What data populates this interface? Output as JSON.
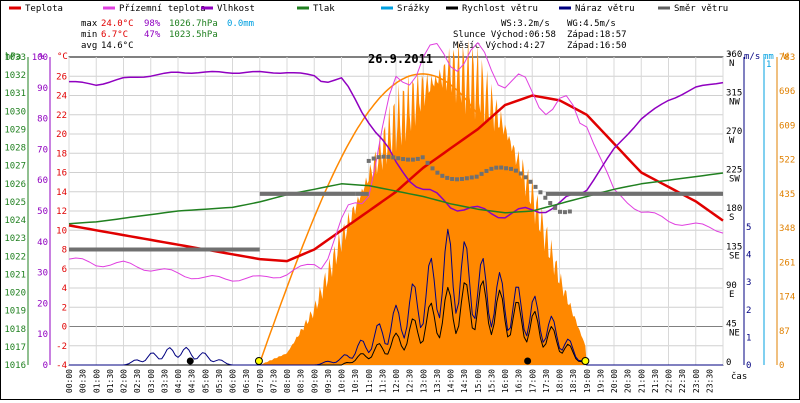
{
  "legend": [
    {
      "label": "Teplota",
      "color": "#e00000"
    },
    {
      "label": "Přízemní teplota",
      "color": "#e040e0"
    },
    {
      "label": "Vlhkost",
      "color": "#9000c0"
    },
    {
      "label": "Tlak",
      "color": "#208020"
    },
    {
      "label": "Srážky",
      "color": "#00a0e0"
    },
    {
      "label": "Rychlost větru",
      "color": "#000000"
    },
    {
      "label": "Náraz větru",
      "color": "#000080"
    },
    {
      "label": "Směr větru",
      "color": "#606060"
    }
  ],
  "stats": {
    "max_label": "max",
    "max_t": "24.0°C",
    "max_h": "98%",
    "max_p": "1026.7hPa",
    "max_r": "0.0mm",
    "min_label": "min",
    "min_t": "6.7°C",
    "min_h": "47%",
    "min_p": "1023.5hPa",
    "avg_label": "avg",
    "avg_t": "14.6°C",
    "ws": "WS:3.2m/s",
    "wg": "WG:4.5m/s",
    "sun_rise": "Slunce Východ:06:58",
    "sun_set": "Západ:18:57",
    "moon_rise": "Měsíc  Východ:4:27",
    "moon_set": "Západ:16:50"
  },
  "date": "26.9.2011",
  "axes": {
    "hpa_title": "hPa",
    "pct_title": "%",
    "c_title": "°C",
    "deg_title": "°",
    "ms_title": "m/s",
    "mm_title": "mm",
    "w_title": "W",
    "hpa_ticks": [
      "1033",
      "1032",
      "1031",
      "1030",
      "1029",
      "1028",
      "1027",
      "1026",
      "1025",
      "1024",
      "1023",
      "1022",
      "1021",
      "1020",
      "1019",
      "1018",
      "1017",
      "1016"
    ],
    "pct_ticks": [
      "100",
      "90",
      "80",
      "70",
      "60",
      "50",
      "40",
      "30",
      "20",
      "10",
      "0"
    ],
    "c_ticks": [
      "26",
      "24",
      "22",
      "20",
      "18",
      "16",
      "14",
      "12",
      "10",
      "8",
      "6",
      "4",
      "2",
      "0",
      "-2",
      "-4"
    ],
    "deg_ticks": [
      "360",
      "315",
      "270",
      "225",
      "180",
      "135",
      "90",
      "45",
      "0"
    ],
    "dir_ticks": [
      "N",
      "NW",
      "W",
      "SW",
      "S",
      "SE",
      "E",
      "NE",
      ""
    ],
    "ms_ticks": [
      "5",
      "4",
      "3",
      "2",
      "1",
      "0"
    ],
    "mm_ticks": [
      "1"
    ],
    "w_ticks": [
      "783",
      "696",
      "609",
      "522",
      "435",
      "348",
      "261",
      "174",
      "87",
      "0"
    ],
    "x_ticks": [
      "00:00",
      "00:30",
      "01:00",
      "01:30",
      "02:00",
      "02:30",
      "03:00",
      "03:30",
      "04:00",
      "04:30",
      "05:00",
      "05:30",
      "06:00",
      "06:30",
      "07:00",
      "07:30",
      "08:00",
      "08:30",
      "09:00",
      "09:30",
      "10:00",
      "10:30",
      "11:00",
      "11:30",
      "12:00",
      "12:30",
      "13:00",
      "13:30",
      "14:00",
      "14:30",
      "15:00",
      "15:30",
      "16:00",
      "16:30",
      "17:00",
      "17:30",
      "18:00",
      "18:30",
      "19:00",
      "19:30",
      "20:00",
      "20:30",
      "21:00",
      "21:30",
      "22:00",
      "22:30",
      "23:00",
      "23:30"
    ],
    "x_title": "čas"
  },
  "chart_data": {
    "type": "line",
    "title": "26.9.2011",
    "xlabel": "čas",
    "x": [
      0,
      1,
      2,
      3,
      4,
      5,
      6,
      7,
      8,
      9,
      10,
      11,
      12,
      13,
      14,
      15,
      16,
      17,
      18,
      19,
      20,
      21,
      22,
      23,
      24
    ],
    "series": [
      {
        "name": "Teplota",
        "unit": "°C",
        "values": [
          10.5,
          10,
          9.5,
          9,
          8.5,
          8,
          7.5,
          7,
          6.8,
          8,
          10,
          12,
          14,
          16.5,
          18.5,
          20.5,
          23,
          24,
          23.5,
          22,
          19,
          16,
          14.5,
          13,
          11
        ]
      },
      {
        "name": "Přízemní teplota",
        "unit": "°C",
        "values": [
          7,
          6.5,
          6.5,
          6,
          5.5,
          5,
          5,
          5,
          5.5,
          6.5,
          10,
          15,
          25,
          28,
          28,
          28,
          26,
          24,
          23,
          21,
          14,
          12,
          11,
          10.5,
          10
        ]
      },
      {
        "name": "Vlhkost",
        "unit": "%",
        "values": [
          92,
          91,
          93,
          94,
          95,
          95,
          95,
          95,
          95,
          94,
          92,
          80,
          65,
          57,
          52,
          50,
          49,
          50,
          52,
          57,
          70,
          80,
          86,
          90,
          92
        ]
      },
      {
        "name": "Tlak",
        "unit": "hPa",
        "values": [
          1023.8,
          1023.9,
          1024.1,
          1024.3,
          1024.5,
          1024.6,
          1024.7,
          1025.0,
          1025.4,
          1025.7,
          1026.0,
          1025.9,
          1025.6,
          1025.3,
          1024.9,
          1024.6,
          1024.4,
          1024.5,
          1024.9,
          1025.3,
          1025.7,
          1026.0,
          1026.2,
          1026.4,
          1026.6
        ]
      },
      {
        "name": "Rychlost větru",
        "unit": "m/s",
        "values": [
          0,
          0,
          0,
          0,
          0,
          0,
          0,
          0,
          0,
          0,
          0,
          0.4,
          0.8,
          1.4,
          2.0,
          2.2,
          1.8,
          1.4,
          0.8,
          0,
          0,
          0,
          0,
          0,
          0
        ]
      },
      {
        "name": "Náraz větru",
        "unit": "m/s",
        "values": [
          0,
          0,
          0,
          0.3,
          0.5,
          0.3,
          0,
          0,
          0,
          0,
          0.2,
          0.8,
          1.5,
          2.4,
          3.5,
          2.8,
          2.2,
          1.8,
          1.0,
          0,
          0,
          0,
          0,
          0,
          0
        ]
      },
      {
        "name": "Směr větru",
        "unit": "°",
        "values": [
          135,
          135,
          135,
          135,
          135,
          135,
          135,
          200,
          200,
          200,
          200,
          210,
          240,
          270,
          240,
          210,
          200,
          200,
          200,
          220,
          220,
          225,
          225,
          225,
          225
        ]
      }
    ],
    "solar_w": [
      0,
      0,
      0,
      0,
      0,
      0,
      0,
      0,
      30,
      140,
      320,
      480,
      620,
      700,
      750,
      720,
      600,
      430,
      220,
      40,
      0,
      0,
      0,
      0,
      0
    ],
    "solar_envelope_max_w": 740,
    "ylim_c": [
      -4,
      28
    ],
    "ylim_pct": [
      0,
      100
    ],
    "ylim_hpa": [
      1016,
      1033
    ],
    "ylim_deg": [
      0,
      360
    ],
    "ylim_ms": [
      0,
      5
    ],
    "ylim_w": [
      0,
      783
    ],
    "xlim_h": [
      0,
      24
    ],
    "grid": true,
    "legend_position": "top"
  }
}
